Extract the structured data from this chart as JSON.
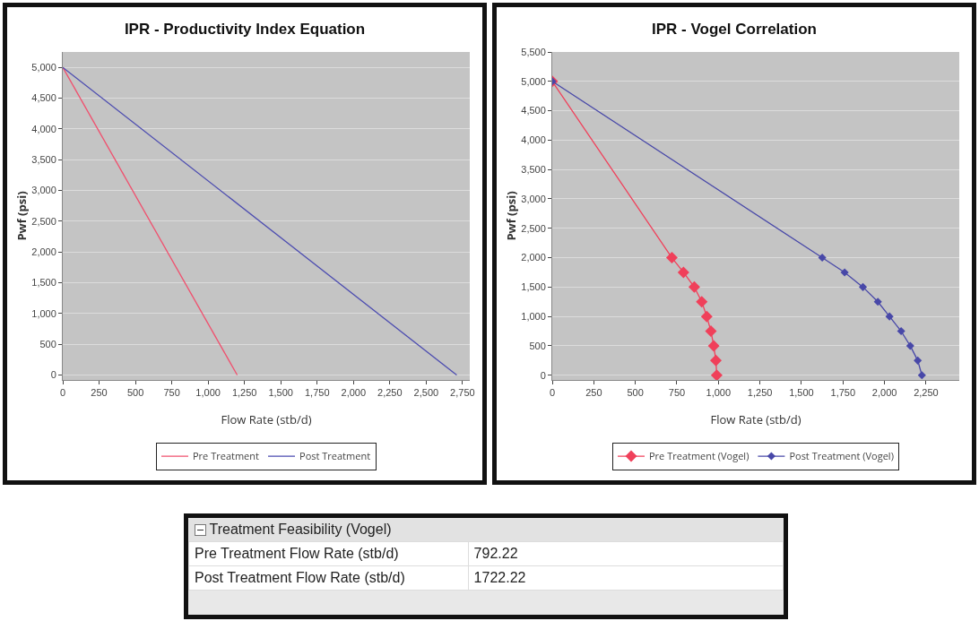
{
  "chart_data": [
    {
      "type": "line",
      "title": "IPR - Productivity Index Equation",
      "xlabel": "Flow Rate (stb/d)",
      "ylabel": "Pwf (psi)",
      "xlim": [
        0,
        2800
      ],
      "ylim": [
        -80,
        5250
      ],
      "xticks": [
        {
          "value": 0,
          "label": "0"
        },
        250,
        500,
        750,
        {
          "value": 1000,
          "label": "1,000"
        },
        {
          "value": 1250,
          "label": "1,250"
        },
        {
          "value": 1500,
          "label": "1,500"
        },
        {
          "value": 1750,
          "label": "1,750"
        },
        {
          "value": 2000,
          "label": "2,000"
        },
        {
          "value": 2250,
          "label": "2,250"
        },
        {
          "value": 2500,
          "label": "2,500"
        },
        {
          "value": 2750,
          "label": "2,750"
        }
      ],
      "yticks": [
        {
          "value": 0,
          "label": "0"
        },
        500,
        {
          "value": 1000,
          "label": "1,000"
        },
        {
          "value": 1500,
          "label": "1,500"
        },
        {
          "value": 2000,
          "label": "2,000"
        },
        {
          "value": 2500,
          "label": "2,500"
        },
        {
          "value": 3000,
          "label": "3,000"
        },
        {
          "value": 3500,
          "label": "3,500"
        },
        {
          "value": 4000,
          "label": "4,000"
        },
        {
          "value": 4500,
          "label": "4,500"
        },
        {
          "value": 5000,
          "label": "5,000"
        }
      ],
      "grid": "y",
      "legend": "bottom",
      "marker": "none",
      "series": [
        {
          "name": "Pre Treatment",
          "color": "#f0506e",
          "x": [
            0,
            1200
          ],
          "values": [
            5000,
            0
          ]
        },
        {
          "name": "Post Treatment",
          "color": "#4b4bb0",
          "x": [
            0,
            2710
          ],
          "values": [
            5000,
            0
          ]
        }
      ]
    },
    {
      "type": "line",
      "title": "IPR - Vogel Correlation",
      "xlabel": "Flow Rate (stb/d)",
      "ylabel": "Pwf (psi)",
      "xlim": [
        0,
        2450
      ],
      "ylim": [
        -80,
        5500
      ],
      "xticks": [
        {
          "value": 0,
          "label": "0"
        },
        250,
        500,
        750,
        {
          "value": 1000,
          "label": "1,000"
        },
        {
          "value": 1250,
          "label": "1,250"
        },
        {
          "value": 1500,
          "label": "1,500"
        },
        {
          "value": 1750,
          "label": "1,750"
        },
        {
          "value": 2000,
          "label": "2,000"
        },
        {
          "value": 2250,
          "label": "2,250"
        }
      ],
      "yticks": [
        {
          "value": 0,
          "label": "0"
        },
        500,
        {
          "value": 1000,
          "label": "1,000"
        },
        {
          "value": 1500,
          "label": "1,500"
        },
        {
          "value": 2000,
          "label": "2,000"
        },
        {
          "value": 2500,
          "label": "2,500"
        },
        {
          "value": 3000,
          "label": "3,000"
        },
        {
          "value": 3500,
          "label": "3,500"
        },
        {
          "value": 4000,
          "label": "4,000"
        },
        {
          "value": 4500,
          "label": "4,500"
        },
        {
          "value": 5000,
          "label": "5,000"
        },
        {
          "value": 5500,
          "label": "5,500"
        }
      ],
      "grid": "y",
      "legend": "bottom",
      "marker": "diamond",
      "series": [
        {
          "name": "Pre Treatment (Vogel)",
          "color": "#f0405a",
          "x": [
            0,
            720,
            790,
            855,
            900,
            930,
            955,
            972,
            985,
            990
          ],
          "values": [
            5000,
            2000,
            1750,
            1500,
            1250,
            1000,
            750,
            500,
            250,
            0
          ]
        },
        {
          "name": "Post Treatment (Vogel)",
          "color": "#4848a8",
          "x": [
            0,
            1625,
            1760,
            1870,
            1960,
            2030,
            2100,
            2155,
            2200,
            2225
          ],
          "values": [
            5000,
            2000,
            1750,
            1500,
            1250,
            1000,
            750,
            500,
            250,
            0
          ]
        }
      ]
    },
    {
      "type": "other",
      "title": "Treatment Feasibility (Vogel)",
      "annotations": [
        "Pre Treatment Flow Rate (stb/d)",
        "792.22",
        "Post Treatment Flow Rate (stb/d)",
        "1722.22"
      ]
    }
  ]
}
